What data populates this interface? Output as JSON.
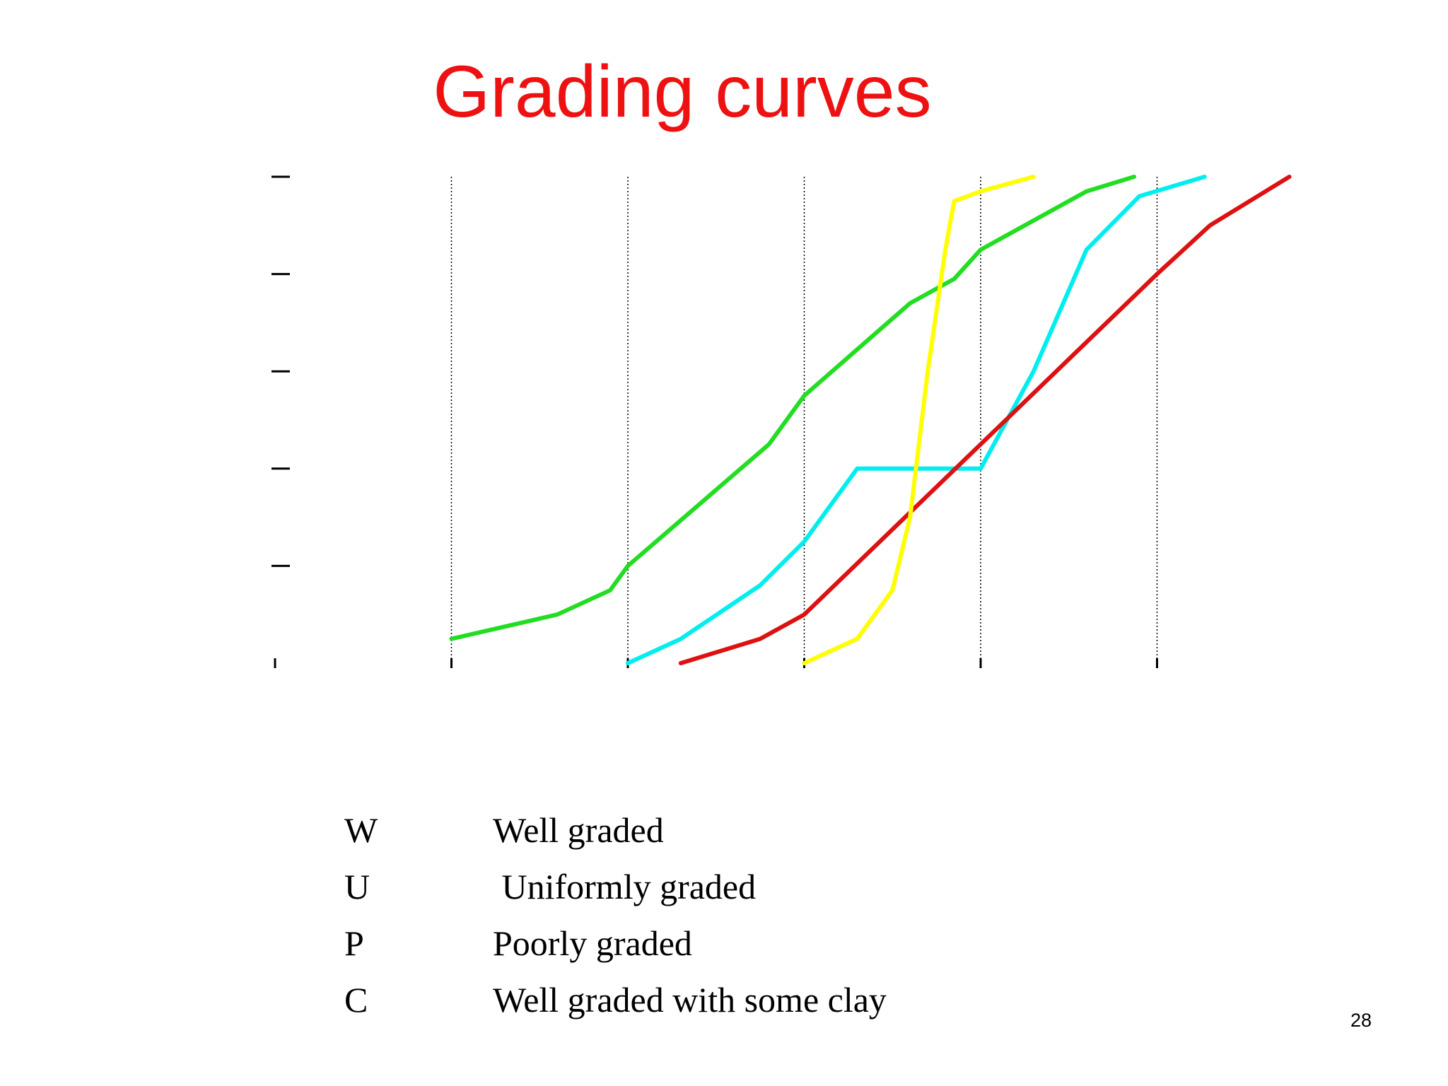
{
  "slide": {
    "title": "Grading curves",
    "title_color": "#ee1111",
    "page_number": "28"
  },
  "legend": [
    {
      "code": "W",
      "description": "Well graded"
    },
    {
      "code": "U",
      "description": " Uniformly graded"
    },
    {
      "code": "P",
      "description": "Poorly graded"
    },
    {
      "code": "C",
      "description": "Well graded with some clay"
    }
  ],
  "chart_data": {
    "type": "line",
    "title": "",
    "xlabel": "",
    "ylabel": "",
    "xlim": [
      0,
      6
    ],
    "ylim": [
      0,
      100
    ],
    "x_gridlines": [
      1,
      2,
      3,
      4,
      5
    ],
    "grid": "vertical dotted",
    "y_ticks": [
      0,
      20,
      40,
      60,
      80,
      100
    ],
    "series": [
      {
        "color": "#22dd22",
        "points": [
          [
            1.0,
            5
          ],
          [
            1.6,
            10
          ],
          [
            1.9,
            15
          ],
          [
            2.0,
            20
          ],
          [
            2.8,
            45
          ],
          [
            3.0,
            55
          ],
          [
            3.6,
            74
          ],
          [
            3.85,
            79
          ],
          [
            4.0,
            85
          ],
          [
            4.6,
            97
          ],
          [
            4.87,
            100
          ]
        ]
      },
      {
        "color": "#00eeee",
        "points": [
          [
            2.0,
            0
          ],
          [
            2.3,
            5
          ],
          [
            2.75,
            16
          ],
          [
            3.0,
            25
          ],
          [
            3.3,
            40
          ],
          [
            4.0,
            40
          ],
          [
            4.3,
            60
          ],
          [
            4.6,
            85
          ],
          [
            4.9,
            96
          ],
          [
            5.27,
            100
          ]
        ]
      },
      {
        "color": "#dd1111",
        "points": [
          [
            2.3,
            0
          ],
          [
            2.75,
            5
          ],
          [
            3.0,
            10
          ],
          [
            4.0,
            45
          ],
          [
            5.0,
            80
          ],
          [
            5.3,
            90
          ],
          [
            5.75,
            100
          ]
        ]
      },
      {
        "color": "#ffff00",
        "points": [
          [
            3.0,
            0
          ],
          [
            3.3,
            5
          ],
          [
            3.5,
            15
          ],
          [
            3.6,
            30
          ],
          [
            3.7,
            60
          ],
          [
            3.8,
            85
          ],
          [
            3.85,
            95
          ],
          [
            4.0,
            97
          ],
          [
            4.3,
            100
          ]
        ]
      }
    ]
  }
}
